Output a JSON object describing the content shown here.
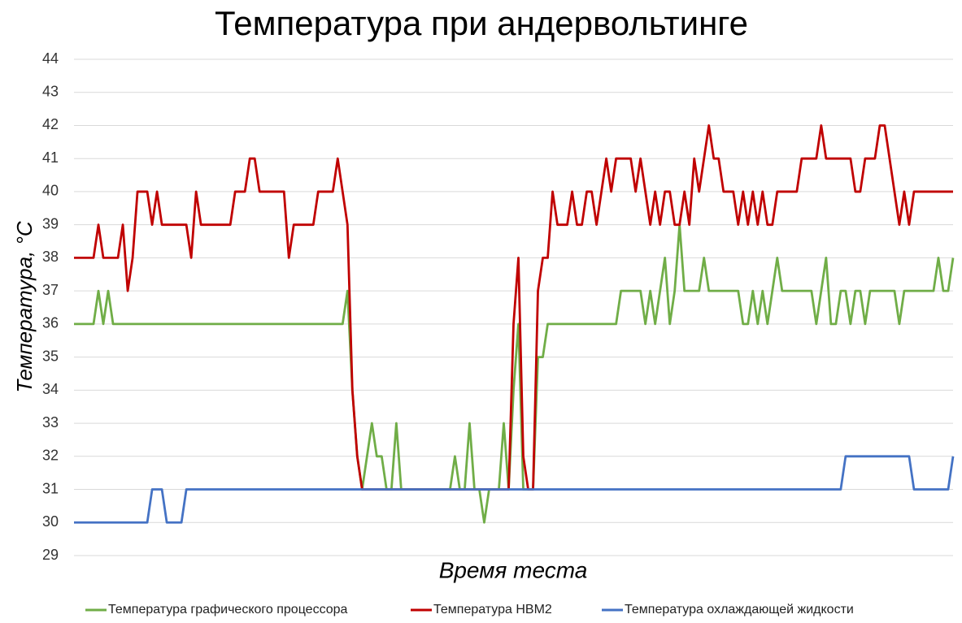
{
  "chart_data": {
    "type": "line",
    "title": "Температура при андервольтинге",
    "y_label": "Температура, °C",
    "x_label": "Время теста",
    "ylim": [
      29,
      44
    ],
    "yticks": [
      29,
      30,
      31,
      32,
      33,
      34,
      35,
      36,
      37,
      38,
      39,
      40,
      41,
      42,
      43,
      44
    ],
    "grid": true,
    "legend": "bottom",
    "series": [
      {
        "name": "Температура графического процессора",
        "color": "#70ad47",
        "values": [
          36,
          36,
          36,
          36,
          36,
          37,
          36,
          37,
          36,
          36,
          36,
          36,
          36,
          36,
          36,
          36,
          36,
          36,
          36,
          36,
          36,
          36,
          36,
          36,
          36,
          36,
          36,
          36,
          36,
          36,
          36,
          36,
          36,
          36,
          36,
          36,
          36,
          36,
          36,
          36,
          36,
          36,
          36,
          36,
          36,
          36,
          36,
          36,
          36,
          36,
          36,
          36,
          36,
          36,
          36,
          36,
          37,
          34,
          32,
          31,
          32,
          33,
          32,
          32,
          31,
          31,
          33,
          31,
          31,
          31,
          31,
          31,
          31,
          31,
          31,
          31,
          31,
          31,
          32,
          31,
          31,
          33,
          31,
          31,
          30,
          31,
          31,
          31,
          33,
          31,
          34,
          36,
          31,
          31,
          31,
          35,
          35,
          36,
          36,
          36,
          36,
          36,
          36,
          36,
          36,
          36,
          36,
          36,
          36,
          36,
          36,
          36,
          37,
          37,
          37,
          37,
          37,
          36,
          37,
          36,
          37,
          38,
          36,
          37,
          39,
          37,
          37,
          37,
          37,
          38,
          37,
          37,
          37,
          37,
          37,
          37,
          37,
          36,
          36,
          37,
          36,
          37,
          36,
          37,
          38,
          37,
          37,
          37,
          37,
          37,
          37,
          37,
          36,
          37,
          38,
          36,
          36,
          37,
          37,
          36,
          37,
          37,
          36,
          37,
          37,
          37,
          37,
          37,
          37,
          36,
          37,
          37,
          37,
          37,
          37,
          37,
          37,
          38,
          37,
          37,
          38
        ]
      },
      {
        "name": "Температура HBM2",
        "color": "#c00000",
        "values": [
          38,
          38,
          38,
          38,
          38,
          39,
          38,
          38,
          38,
          38,
          39,
          37,
          38,
          40,
          40,
          40,
          39,
          40,
          39,
          39,
          39,
          39,
          39,
          39,
          38,
          40,
          39,
          39,
          39,
          39,
          39,
          39,
          39,
          40,
          40,
          40,
          41,
          41,
          40,
          40,
          40,
          40,
          40,
          40,
          38,
          39,
          39,
          39,
          39,
          39,
          40,
          40,
          40,
          40,
          41,
          40,
          39,
          34,
          32,
          31,
          31,
          31,
          31,
          31,
          31,
          31,
          31,
          31,
          31,
          31,
          31,
          31,
          31,
          31,
          31,
          31,
          31,
          31,
          31,
          31,
          31,
          31,
          31,
          31,
          31,
          31,
          31,
          31,
          31,
          31,
          36,
          38,
          32,
          31,
          31,
          37,
          38,
          38,
          40,
          39,
          39,
          39,
          40,
          39,
          39,
          40,
          40,
          39,
          40,
          41,
          40,
          41,
          41,
          41,
          41,
          40,
          41,
          40,
          39,
          40,
          39,
          40,
          40,
          39,
          39,
          40,
          39,
          41,
          40,
          41,
          42,
          41,
          41,
          40,
          40,
          40,
          39,
          40,
          39,
          40,
          39,
          40,
          39,
          39,
          40,
          40,
          40,
          40,
          40,
          41,
          41,
          41,
          41,
          42,
          41,
          41,
          41,
          41,
          41,
          41,
          40,
          40,
          41,
          41,
          41,
          42,
          42,
          41,
          40,
          39,
          40,
          39,
          40,
          40,
          40,
          40,
          40,
          40,
          40,
          40,
          40
        ]
      },
      {
        "name": "Температура охлаждающей жидкости",
        "color": "#4472c4",
        "values": [
          30,
          30,
          30,
          30,
          30,
          30,
          30,
          30,
          30,
          30,
          30,
          30,
          30,
          30,
          30,
          30,
          31,
          31,
          31,
          30,
          30,
          30,
          30,
          31,
          31,
          31,
          31,
          31,
          31,
          31,
          31,
          31,
          31,
          31,
          31,
          31,
          31,
          31,
          31,
          31,
          31,
          31,
          31,
          31,
          31,
          31,
          31,
          31,
          31,
          31,
          31,
          31,
          31,
          31,
          31,
          31,
          31,
          31,
          31,
          31,
          31,
          31,
          31,
          31,
          31,
          31,
          31,
          31,
          31,
          31,
          31,
          31,
          31,
          31,
          31,
          31,
          31,
          31,
          31,
          31,
          31,
          31,
          31,
          31,
          31,
          31,
          31,
          31,
          31,
          31,
          31,
          31,
          31,
          31,
          31,
          31,
          31,
          31,
          31,
          31,
          31,
          31,
          31,
          31,
          31,
          31,
          31,
          31,
          31,
          31,
          31,
          31,
          31,
          31,
          31,
          31,
          31,
          31,
          31,
          31,
          31,
          31,
          31,
          31,
          31,
          31,
          31,
          31,
          31,
          31,
          31,
          31,
          31,
          31,
          31,
          31,
          31,
          31,
          31,
          31,
          31,
          31,
          31,
          31,
          31,
          31,
          31,
          31,
          31,
          31,
          31,
          31,
          31,
          31,
          31,
          31,
          31,
          31,
          32,
          32,
          32,
          32,
          32,
          32,
          32,
          32,
          32,
          32,
          32,
          32,
          32,
          32,
          31,
          31,
          31,
          31,
          31,
          31,
          31,
          31,
          32
        ]
      }
    ]
  }
}
